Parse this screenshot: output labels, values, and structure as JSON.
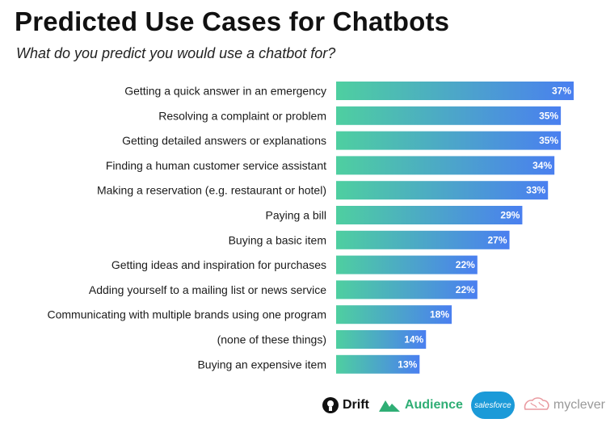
{
  "header": {
    "title": "Predicted Use Cases for Chatbots",
    "subtitle": "What do you predict you would use a chatbot for?"
  },
  "colors": {
    "bar_start": "#4ecfa0",
    "bar_end": "#4a7ff0"
  },
  "chart_data": {
    "type": "bar",
    "orientation": "horizontal",
    "categories": [
      "Getting a quick answer in an emergency",
      "Resolving a complaint or problem",
      "Getting detailed answers or explanations",
      "Finding a human customer service assistant",
      "Making a reservation (e.g. restaurant or hotel)",
      "Paying a bill",
      "Buying a basic item",
      "Getting ideas and inspiration for purchases",
      "Adding yourself to a mailing list or news service",
      "Communicating with multiple brands using one program",
      "(none of these things)",
      "Buying an expensive item"
    ],
    "values": [
      37,
      35,
      35,
      34,
      33,
      29,
      27,
      22,
      22,
      18,
      14,
      13
    ],
    "value_labels": [
      "37%",
      "35%",
      "35%",
      "34%",
      "33%",
      "29%",
      "27%",
      "22%",
      "22%",
      "18%",
      "14%",
      "13%"
    ],
    "value_max": 37,
    "grid": false,
    "legend": "none"
  },
  "logos": {
    "drift": "Drift",
    "audience": "Audience",
    "salesforce": "salesforce",
    "myclever": "myclever"
  }
}
